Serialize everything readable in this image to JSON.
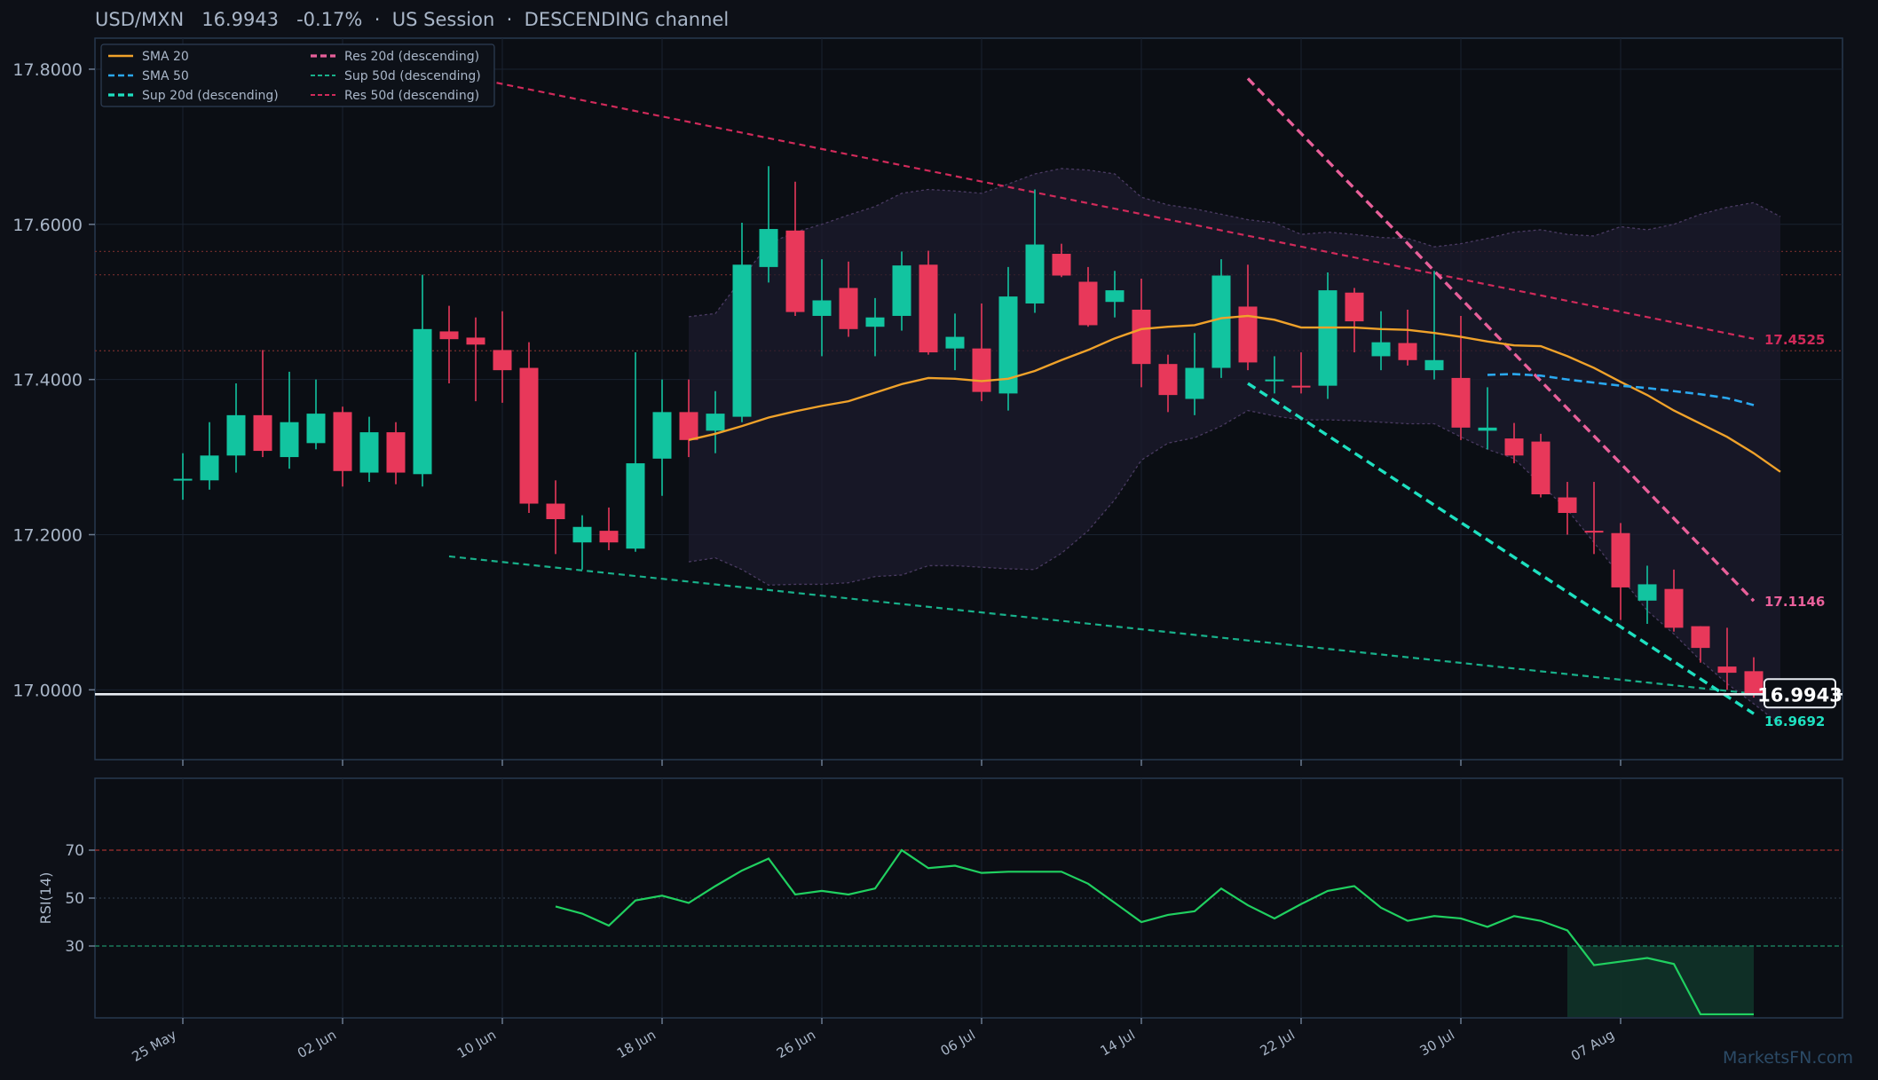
{
  "header": {
    "pair": "USD/MXN",
    "price": "16.9943",
    "change": "-0.17%",
    "session": "US Session",
    "pattern": "DESCENDING channel"
  },
  "watermark": "MarketsFN.com",
  "colors": {
    "background": "#0d1017",
    "up": "#12c4a0",
    "down": "#e8385a",
    "sma20": "#f0a22a",
    "sma50": "#2aa8f0",
    "sup20": "#1ee0c0",
    "res20": "#e8609a",
    "sup50": "#18b08a",
    "res50": "#d02a5a",
    "rsi": "#20d060"
  },
  "chart_data": [
    {
      "type": "candlestick",
      "title": "USD/MXN 16.9943 -0.17% · US Session · DESCENDING channel",
      "x_tick_labels": [
        "25 May",
        "02 Jun",
        "10 Jun",
        "18 Jun",
        "26 Jun",
        "06 Jul",
        "14 Jul",
        "22 Jul",
        "30 Jul",
        "07 Aug"
      ],
      "y_tick_labels": [
        "17.8000",
        "17.6000",
        "17.4000",
        "17.2000",
        "17.0000"
      ],
      "ylim": [
        16.91,
        17.84
      ],
      "legend": [
        "SMA 20",
        "SMA 50",
        "Sup 20d (descending)",
        "Res 20d (descending)",
        "Sup 50d (descending)",
        "Res 50d (descending)"
      ],
      "legend_position": "top-left",
      "ohlc": [
        [
          17.272,
          17.305,
          17.245,
          17.272
        ],
        [
          17.27,
          17.345,
          17.258,
          17.302
        ],
        [
          17.302,
          17.395,
          17.28,
          17.354
        ],
        [
          17.354,
          17.438,
          17.3,
          17.308
        ],
        [
          17.3,
          17.41,
          17.285,
          17.345
        ],
        [
          17.318,
          17.4,
          17.31,
          17.356
        ],
        [
          17.358,
          17.365,
          17.262,
          17.282
        ],
        [
          17.28,
          17.352,
          17.268,
          17.332
        ],
        [
          17.332,
          17.345,
          17.265,
          17.28
        ],
        [
          17.278,
          17.535,
          17.262,
          17.465
        ],
        [
          17.462,
          17.495,
          17.395,
          17.452
        ],
        [
          17.454,
          17.48,
          17.372,
          17.445
        ],
        [
          17.438,
          17.488,
          17.37,
          17.412
        ],
        [
          17.415,
          17.448,
          17.228,
          17.24
        ],
        [
          17.24,
          17.27,
          17.175,
          17.22
        ],
        [
          17.19,
          17.225,
          17.155,
          17.21
        ],
        [
          17.205,
          17.235,
          17.18,
          17.19
        ],
        [
          17.182,
          17.435,
          17.178,
          17.292
        ],
        [
          17.298,
          17.4,
          17.25,
          17.358
        ],
        [
          17.358,
          17.4,
          17.3,
          17.322
        ],
        [
          17.334,
          17.385,
          17.305,
          17.356
        ],
        [
          17.352,
          17.602,
          17.345,
          17.548
        ],
        [
          17.545,
          17.675,
          17.525,
          17.594
        ],
        [
          17.592,
          17.655,
          17.482,
          17.487
        ],
        [
          17.482,
          17.555,
          17.43,
          17.502
        ],
        [
          17.518,
          17.552,
          17.455,
          17.465
        ],
        [
          17.468,
          17.505,
          17.43,
          17.48
        ],
        [
          17.482,
          17.565,
          17.463,
          17.547
        ],
        [
          17.548,
          17.566,
          17.432,
          17.435
        ],
        [
          17.44,
          17.485,
          17.412,
          17.455
        ],
        [
          17.44,
          17.498,
          17.372,
          17.384
        ],
        [
          17.382,
          17.545,
          17.36,
          17.507
        ],
        [
          17.498,
          17.645,
          17.486,
          17.574
        ],
        [
          17.562,
          17.575,
          17.532,
          17.534
        ],
        [
          17.526,
          17.545,
          17.468,
          17.47
        ],
        [
          17.5,
          17.54,
          17.48,
          17.515
        ],
        [
          17.49,
          17.53,
          17.39,
          17.42
        ],
        [
          17.42,
          17.432,
          17.358,
          17.38
        ],
        [
          17.375,
          17.46,
          17.354,
          17.415
        ],
        [
          17.415,
          17.555,
          17.402,
          17.534
        ],
        [
          17.494,
          17.548,
          17.412,
          17.422
        ],
        [
          17.398,
          17.43,
          17.382,
          17.4
        ],
        [
          17.392,
          17.435,
          17.382,
          17.39
        ],
        [
          17.392,
          17.538,
          17.375,
          17.515
        ],
        [
          17.512,
          17.518,
          17.435,
          17.475
        ],
        [
          17.43,
          17.488,
          17.412,
          17.448
        ],
        [
          17.447,
          17.49,
          17.418,
          17.425
        ],
        [
          17.412,
          17.54,
          17.4,
          17.425
        ],
        [
          17.402,
          17.482,
          17.322,
          17.338
        ],
        [
          17.334,
          17.39,
          17.31,
          17.338
        ],
        [
          17.324,
          17.344,
          17.292,
          17.302
        ],
        [
          17.32,
          17.33,
          17.248,
          17.252
        ],
        [
          17.248,
          17.268,
          17.2,
          17.228
        ],
        [
          17.205,
          17.268,
          17.175,
          17.203
        ],
        [
          17.202,
          17.215,
          17.09,
          17.132
        ],
        [
          17.115,
          17.16,
          17.085,
          17.136
        ],
        [
          17.13,
          17.155,
          17.075,
          17.08
        ],
        [
          17.082,
          17.082,
          17.035,
          17.054
        ],
        [
          17.03,
          17.08,
          17.0,
          17.022
        ],
        [
          17.024,
          17.042,
          16.99,
          16.994
        ]
      ],
      "sma20": {
        "start_index": 19,
        "values": [
          17.322,
          17.33,
          17.34,
          17.351,
          17.359,
          17.366,
          17.372,
          17.383,
          17.394,
          17.402,
          17.401,
          17.398,
          17.401,
          17.411,
          17.425,
          17.438,
          17.453,
          17.465,
          17.468,
          17.47,
          17.479,
          17.482,
          17.477,
          17.467,
          17.467,
          17.467,
          17.465,
          17.464,
          17.46,
          17.455,
          17.449,
          17.444,
          17.443,
          17.43,
          17.415,
          17.397,
          17.38,
          17.36,
          17.343,
          17.326,
          17.305,
          17.281
        ]
      },
      "sma50": {
        "start_index": 49,
        "values": [
          17.406,
          17.407,
          17.405,
          17.4,
          17.396,
          17.392,
          17.389,
          17.385,
          17.381,
          17.376,
          17.367
        ]
      },
      "bollinger": {
        "start_index": 19,
        "upper": [
          17.481,
          17.485,
          17.53,
          17.575,
          17.59,
          17.6,
          17.612,
          17.623,
          17.64,
          17.645,
          17.643,
          17.64,
          17.652,
          17.665,
          17.672,
          17.67,
          17.665,
          17.635,
          17.625,
          17.62,
          17.613,
          17.606,
          17.602,
          17.587,
          17.59,
          17.587,
          17.583,
          17.582,
          17.571,
          17.575,
          17.582,
          17.59,
          17.593,
          17.587,
          17.585,
          17.597,
          17.593,
          17.6,
          17.613,
          17.622,
          17.628,
          17.61
        ],
        "lower": [
          17.165,
          17.17,
          17.155,
          17.135,
          17.136,
          17.136,
          17.138,
          17.146,
          17.148,
          17.16,
          17.16,
          17.158,
          17.156,
          17.155,
          17.176,
          17.205,
          17.245,
          17.296,
          17.318,
          17.325,
          17.34,
          17.36,
          17.353,
          17.348,
          17.348,
          17.347,
          17.345,
          17.343,
          17.343,
          17.326,
          17.31,
          17.298,
          17.265,
          17.232,
          17.19,
          17.146,
          17.102,
          17.072,
          17.038,
          17.008,
          16.982,
          16.955
        ]
      },
      "horizontal_levels": [
        17.565,
        17.535,
        17.437
      ],
      "trendlines": {
        "res50": {
          "from": [
            11,
            17.788
          ],
          "to": [
            59,
            17.4525
          ]
        },
        "sup50": {
          "from": [
            10,
            17.172
          ],
          "to": [
            59,
            16.995
          ]
        },
        "res20": {
          "from": [
            40,
            17.788
          ],
          "to": [
            59,
            17.1146
          ]
        },
        "sup20": {
          "from": [
            40,
            17.395
          ],
          "to": [
            59,
            16.9692
          ]
        }
      },
      "labels": {
        "res50": "17.4525",
        "res20": "17.1146",
        "sup20": "16.9692",
        "last": "16.9943"
      },
      "last_price": 16.9943
    },
    {
      "type": "line",
      "ylabel": "RSI(14)",
      "y_tick_labels": [
        "70",
        "50",
        "30"
      ],
      "ylim": [
        0,
        100
      ],
      "overbought": 70,
      "oversold": 30,
      "start_index": 14,
      "values": [
        46.5,
        43.5,
        38.5,
        49.0,
        51.0,
        48.0,
        55.0,
        61.5,
        66.5,
        51.5,
        53.0,
        51.5,
        54.0,
        70.0,
        62.5,
        63.5,
        60.5,
        61.0,
        61.0,
        61.0,
        56.0,
        48.0,
        40.0,
        43.0,
        44.5,
        54.0,
        47.0,
        41.5,
        47.5,
        53.0,
        55.0,
        46.0,
        40.5,
        42.5,
        41.5,
        38.0,
        42.5,
        40.5,
        36.5,
        22.0,
        23.5,
        25.0,
        22.5,
        1.5,
        1.5,
        1.5
      ]
    }
  ]
}
